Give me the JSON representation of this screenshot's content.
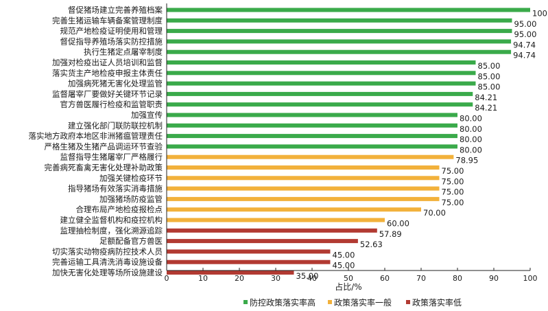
{
  "chart_data": {
    "type": "bar",
    "orientation": "horizontal",
    "xlabel": "占比/%",
    "xlim": [
      0,
      100
    ],
    "xticks": [
      0,
      10,
      20,
      30,
      40,
      50,
      60,
      70,
      80,
      90,
      100
    ],
    "grid": false,
    "legend_position": "bottom",
    "colors": {
      "high": "#3aaa4a",
      "medium": "#f2b13b",
      "low": "#b23a32"
    },
    "legend": [
      {
        "key": "high",
        "label": "防控政策落实率高"
      },
      {
        "key": "medium",
        "label": "政策落实率一般"
      },
      {
        "key": "low",
        "label": "政策落实率低"
      }
    ],
    "bars": [
      {
        "category": "督促猪场建立完善养殖档案",
        "value": 100,
        "label": "100",
        "group": "high"
      },
      {
        "category": "完善生猪运输车辆备案管理制度",
        "value": 95.0,
        "label": "95.00",
        "group": "high"
      },
      {
        "category": "规范产地检疫证明使用和管理",
        "value": 95.0,
        "label": "95.00",
        "group": "high"
      },
      {
        "category": "督促指导养殖场落实防控措施",
        "value": 94.74,
        "label": "94.74",
        "group": "high"
      },
      {
        "category": "执行生猪定点屠宰制度",
        "value": 94.74,
        "label": "94.74",
        "group": "high"
      },
      {
        "category": "加强对检疫出证人员培训和监督",
        "value": 85.0,
        "label": "85.00",
        "group": "high"
      },
      {
        "category": "落实货主产地检疫申报主体责任",
        "value": 85.0,
        "label": "85.00",
        "group": "high"
      },
      {
        "category": "加强病死猪无害化处理监管",
        "value": 85.0,
        "label": "85.00",
        "group": "high"
      },
      {
        "category": "监督屠宰厂要做好关键环节记录",
        "value": 84.21,
        "label": "84.21",
        "group": "high"
      },
      {
        "category": "官方兽医履行检疫和监管职责",
        "value": 84.21,
        "label": "84.21",
        "group": "high"
      },
      {
        "category": "加强宣传",
        "value": 80.0,
        "label": "80.00",
        "group": "high"
      },
      {
        "category": "建立强化部门联防联控机制",
        "value": 80.0,
        "label": "80.00",
        "group": "high"
      },
      {
        "category": "落实地方政府本地区非洲猪瘟管理责任",
        "value": 80.0,
        "label": "80.00",
        "group": "high"
      },
      {
        "category": "严格生猪及生猪产品调运环节查验",
        "value": 80.0,
        "label": "80.00",
        "group": "high"
      },
      {
        "category": "监督指导生猪屠宰厂严格履行",
        "value": 78.95,
        "label": "78.95",
        "group": "medium"
      },
      {
        "category": "完善病死畜禽无害化处理补助政策",
        "value": 75.0,
        "label": "75.00",
        "group": "medium"
      },
      {
        "category": "加强关键检疫环节",
        "value": 75.0,
        "label": "75.00",
        "group": "medium"
      },
      {
        "category": "指导猪场有效落实消毒措施",
        "value": 75.0,
        "label": "75.00",
        "group": "medium"
      },
      {
        "category": "加强猪场防疫监管",
        "value": 75.0,
        "label": "75.00",
        "group": "medium"
      },
      {
        "category": "合理布局产地检疫报检点",
        "value": 70.0,
        "label": "70.00",
        "group": "medium"
      },
      {
        "category": "建立健全监督机构和疫控机构",
        "value": 60.0,
        "label": "60.00",
        "group": "medium"
      },
      {
        "category": "监理抽检制度，强化溯源追踪",
        "value": 57.89,
        "label": "57.89",
        "group": "low"
      },
      {
        "category": "足额配备官方兽医",
        "value": 52.63,
        "label": "52.63",
        "group": "low"
      },
      {
        "category": "切实落实动物疫病防控技术人员",
        "value": 45.0,
        "label": "45.00",
        "group": "low"
      },
      {
        "category": "完善运输工具清洗消毒设施设备",
        "value": 45.0,
        "label": "45.00",
        "group": "low"
      },
      {
        "category": "加快无害化处理等场所设施建设",
        "value": 35.0,
        "label": "35.00",
        "group": "low"
      }
    ]
  }
}
